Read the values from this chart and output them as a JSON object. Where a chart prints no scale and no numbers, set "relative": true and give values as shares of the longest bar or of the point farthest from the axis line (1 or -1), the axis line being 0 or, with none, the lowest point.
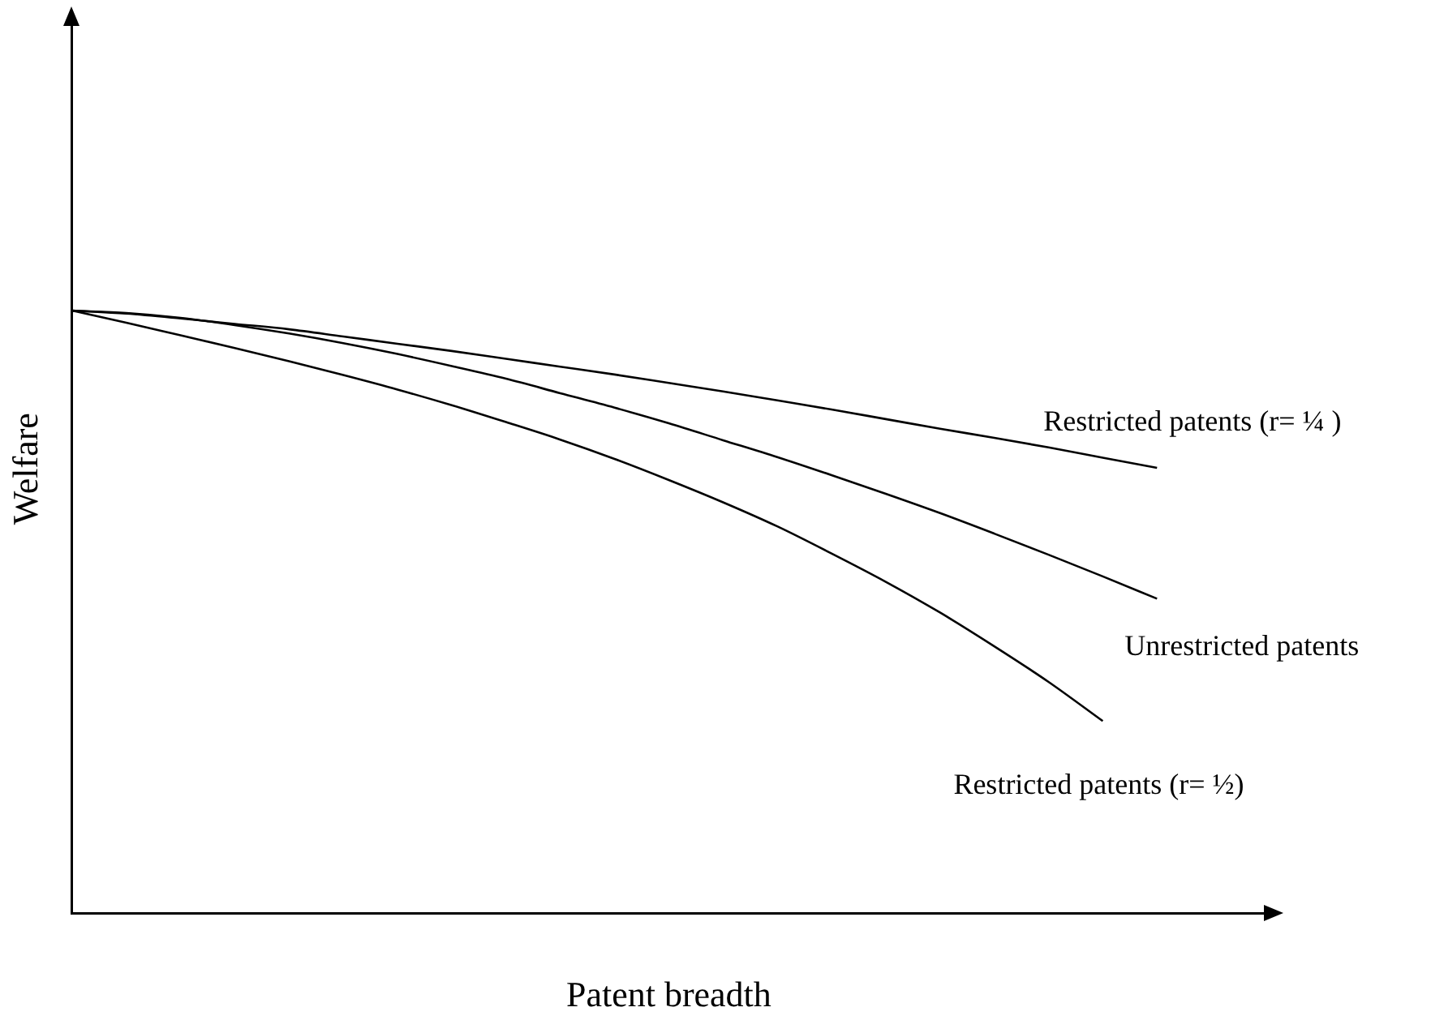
{
  "chart_data": {
    "type": "line",
    "relative": true,
    "xlabel": "Patent breadth",
    "ylabel": "Welfare",
    "legend": false,
    "grid": false,
    "marker": "none",
    "categories": [
      null,
      null,
      null,
      null,
      null,
      null,
      null,
      null,
      null,
      null,
      null,
      null,
      null,
      null,
      null,
      null,
      null,
      null,
      null,
      null,
      null,
      null,
      null
    ],
    "series": [
      {
        "name": "Restricted patents (r= ¼ )",
        "color": "#000000",
        "values": [
          1,
          0.995,
          0.987,
          0.978,
          0.969,
          0.957,
          0.945,
          0.933,
          0.92,
          0.907,
          0.894,
          0.88,
          0.866,
          0.851,
          0.836,
          0.82,
          0.804,
          0.789,
          0.773,
          0.756,
          0.739,
          null,
          null
        ]
      },
      {
        "name": "Unrestricted patents",
        "color": "#000000",
        "values": [
          1,
          0.996,
          0.988,
          0.976,
          0.962,
          0.946,
          0.928,
          0.908,
          0.887,
          0.863,
          0.839,
          0.813,
          0.785,
          0.757,
          0.727,
          0.696,
          0.664,
          0.63,
          0.595,
          0.559,
          0.522,
          null,
          null
        ]
      },
      {
        "name": "Restricted patents (r= ½)",
        "color": "#000000",
        "values": [
          1,
          0.98,
          0.959,
          0.938,
          0.916,
          0.893,
          0.869,
          0.843,
          0.815,
          0.786,
          0.754,
          0.719,
          0.682,
          0.642,
          0.597,
          0.55,
          0.499,
          0.443,
          0.384,
          0.319,
          null,
          null,
          null
        ]
      }
    ]
  }
}
